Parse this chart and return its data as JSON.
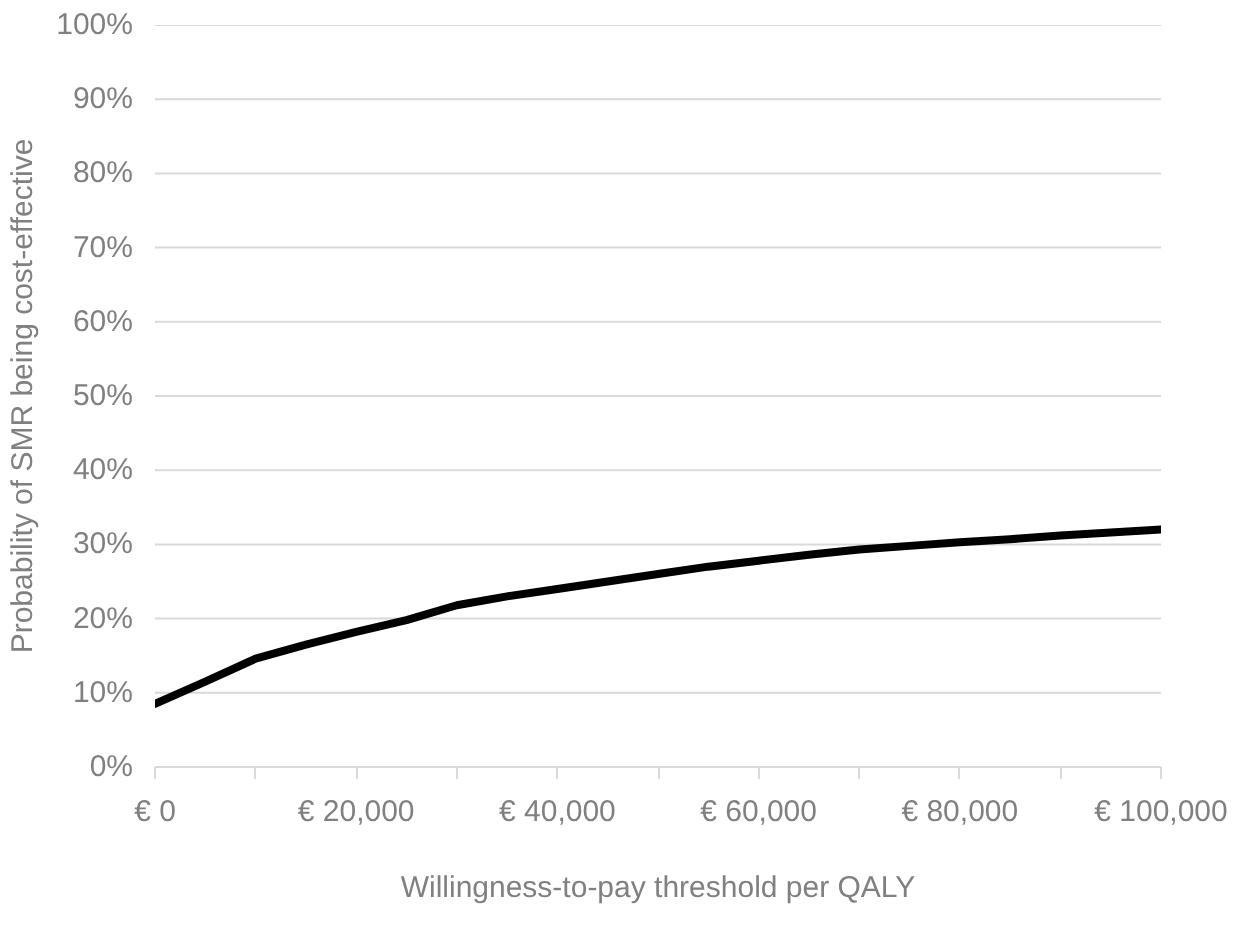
{
  "chart_data": {
    "type": "line",
    "xlabel": "Willingness-to-pay threshold per QALY",
    "ylabel": "Probability of SMR being cost-effective",
    "x": [
      0,
      5000,
      10000,
      15000,
      20000,
      25000,
      30000,
      35000,
      40000,
      45000,
      50000,
      55000,
      60000,
      65000,
      70000,
      75000,
      80000,
      85000,
      90000,
      95000,
      100000
    ],
    "series": [
      {
        "color": "#000000",
        "values": [
          8.5,
          11.5,
          14.6,
          16.5,
          18.2,
          19.8,
          21.8,
          23,
          24,
          25,
          26,
          27,
          27.8,
          28.6,
          29.3,
          29.8,
          30.3,
          30.7,
          31.2,
          31.6,
          32
        ]
      }
    ],
    "xlim": [
      0,
      100000
    ],
    "ylim": [
      0,
      100
    ],
    "xticks": [
      {
        "value": 0,
        "label": "€ 0"
      },
      {
        "value": 10000,
        "label": null
      },
      {
        "value": 20000,
        "label": "€ 20,000"
      },
      {
        "value": 30000,
        "label": null
      },
      {
        "value": 40000,
        "label": "€ 40,000"
      },
      {
        "value": 50000,
        "label": null
      },
      {
        "value": 60000,
        "label": "€ 60,000"
      },
      {
        "value": 70000,
        "label": null
      },
      {
        "value": 80000,
        "label": "€ 80,000"
      },
      {
        "value": 90000,
        "label": null
      },
      {
        "value": 100000,
        "label": "€ 100,000"
      }
    ],
    "yticks": [
      {
        "value": 0,
        "label": "0%"
      },
      {
        "value": 10,
        "label": "10%"
      },
      {
        "value": 20,
        "label": "20%"
      },
      {
        "value": 30,
        "label": "30%"
      },
      {
        "value": 40,
        "label": "40%"
      },
      {
        "value": 50,
        "label": "50%"
      },
      {
        "value": 60,
        "label": "60%"
      },
      {
        "value": 70,
        "label": "70%"
      },
      {
        "value": 80,
        "label": "80%"
      },
      {
        "value": 90,
        "label": "90%"
      },
      {
        "value": 100,
        "label": "100%"
      }
    ],
    "grid": "y",
    "marker": "none",
    "line_style": "solid"
  }
}
